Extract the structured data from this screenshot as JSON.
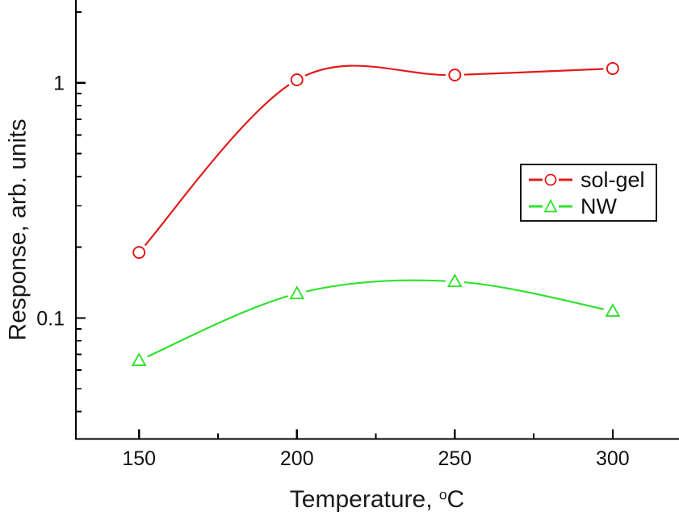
{
  "chart_data": {
    "type": "line",
    "title": "",
    "xlabel": {
      "prefix": "Temperature, ",
      "sup": "o",
      "suffix": "C"
    },
    "ylabel": "Response, arb. units",
    "grid": false,
    "legend_position": "middle-right",
    "axis_color": "#000000",
    "x_axis": {
      "scale": "linear",
      "lim": [
        130,
        321
      ],
      "major_ticks": [
        {
          "value": 150,
          "label": "150"
        },
        {
          "value": 200,
          "label": "200"
        },
        {
          "value": 250,
          "label": "250"
        },
        {
          "value": 300,
          "label": "300"
        }
      ],
      "minor_ticks": [
        175,
        225,
        275
      ]
    },
    "y_axis": {
      "scale": "log",
      "lim": [
        0.0306,
        2.25
      ],
      "major_ticks": [
        {
          "value": 1,
          "label": "1"
        },
        {
          "value": 0.1,
          "label": "0.1"
        }
      ],
      "minor_ticks": [
        2,
        0.9,
        0.8,
        0.7,
        0.6,
        0.5,
        0.4,
        0.3,
        0.2,
        0.09,
        0.08,
        0.07,
        0.06,
        0.05,
        0.04
      ]
    },
    "series": [
      {
        "name": "sol-gel",
        "color": "#e11b1b",
        "marker": "circle",
        "x": [
          150,
          200,
          250,
          300
        ],
        "y": [
          0.19,
          1.03,
          1.08,
          1.15
        ]
      },
      {
        "name": "NW",
        "color": "#2ee22e",
        "marker": "triangle",
        "x": [
          150,
          200,
          250,
          300
        ],
        "y": [
          0.066,
          0.127,
          0.143,
          0.107
        ]
      }
    ]
  }
}
